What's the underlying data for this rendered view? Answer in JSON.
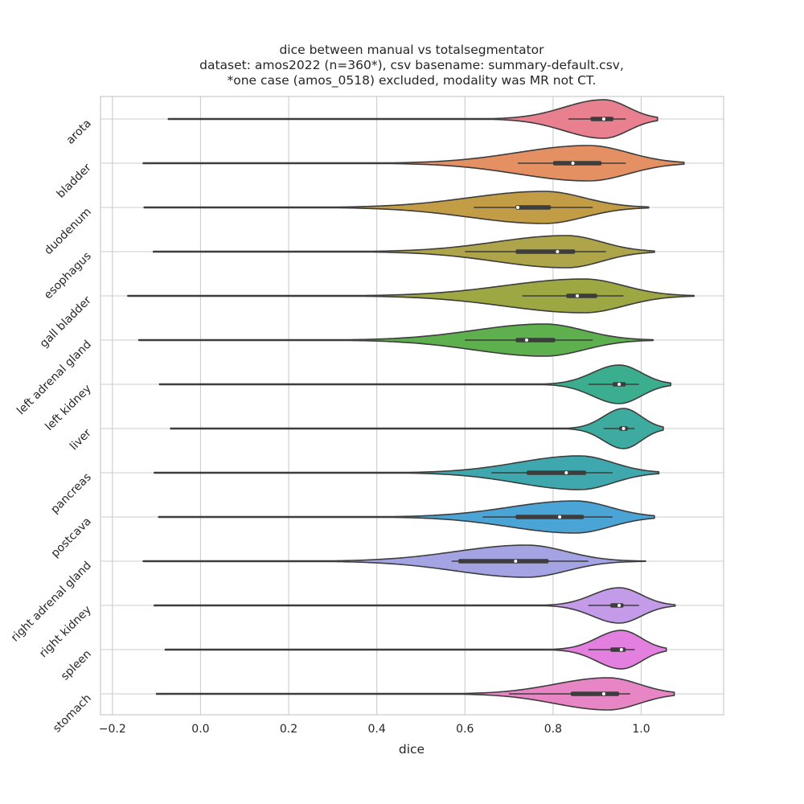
{
  "chart_data": {
    "type": "violin",
    "orientation": "horizontal",
    "title_lines": [
      "dice between manual vs totalsegmentator",
      "dataset: amos2022 (n=360*), csv basename: summary-default.csv,",
      "*one case (amos_0518) excluded, modality was MR not CT."
    ],
    "xlabel": "dice",
    "ylabel": "",
    "xlim": [
      -0.227,
      1.187
    ],
    "xticks": [
      -0.2,
      0.0,
      0.2,
      0.4,
      0.6,
      0.8,
      1.0
    ],
    "xtick_labels": [
      "−0.2",
      "0.0",
      "0.2",
      "0.4",
      "0.6",
      "0.8",
      "1.0"
    ],
    "grid": true,
    "categories": [
      {
        "label": "arota",
        "color": "#e8808f",
        "min": -0.073,
        "max": 1.037,
        "q1": 0.885,
        "median": 0.915,
        "q3": 0.937,
        "wlo": 0.835,
        "whi": 0.965,
        "mode": 0.915,
        "hw": 24,
        "ktl": 0.09,
        "kth": 0.055
      },
      {
        "label": "bladder",
        "color": "#e49062",
        "min": -0.13,
        "max": 1.097,
        "q1": 0.8,
        "median": 0.845,
        "q3": 0.91,
        "wlo": 0.72,
        "whi": 0.965,
        "mode": 0.88,
        "hw": 22,
        "ktl": 0.16,
        "kth": 0.09
      },
      {
        "label": "duodenum",
        "color": "#c29d45",
        "min": -0.128,
        "max": 1.017,
        "q1": 0.715,
        "median": 0.72,
        "q3": 0.795,
        "wlo": 0.62,
        "whi": 0.89,
        "mode": 0.78,
        "hw": 20,
        "ktl": 0.17,
        "kth": 0.09
      },
      {
        "label": "esophagus",
        "color": "#aea44a",
        "min": -0.107,
        "max": 1.03,
        "q1": 0.715,
        "median": 0.81,
        "q3": 0.85,
        "wlo": 0.6,
        "whi": 0.92,
        "mode": 0.83,
        "hw": 20,
        "ktl": 0.16,
        "kth": 0.08
      },
      {
        "label": "gall bladder",
        "color": "#9ea842",
        "min": -0.165,
        "max": 1.12,
        "q1": 0.83,
        "median": 0.855,
        "q3": 0.9,
        "wlo": 0.73,
        "whi": 0.96,
        "mode": 0.87,
        "hw": 21,
        "ktl": 0.18,
        "kth": 0.09
      },
      {
        "label": "left adrenal gland",
        "color": "#5db04d",
        "min": -0.14,
        "max": 1.027,
        "q1": 0.715,
        "median": 0.74,
        "q3": 0.805,
        "wlo": 0.6,
        "whi": 0.89,
        "mode": 0.78,
        "hw": 20,
        "ktl": 0.16,
        "kth": 0.09
      },
      {
        "label": "left kidney",
        "color": "#3cae90",
        "min": -0.093,
        "max": 1.067,
        "q1": 0.935,
        "median": 0.95,
        "q3": 0.965,
        "wlo": 0.88,
        "whi": 0.995,
        "mode": 0.95,
        "hw": 24,
        "ktl": 0.06,
        "kth": 0.05
      },
      {
        "label": "liver",
        "color": "#3dab9f",
        "min": -0.068,
        "max": 1.05,
        "q1": 0.95,
        "median": 0.96,
        "q3": 0.97,
        "wlo": 0.915,
        "whi": 0.985,
        "mode": 0.96,
        "hw": 25,
        "ktl": 0.045,
        "kth": 0.04
      },
      {
        "label": "pancreas",
        "color": "#3fa8af",
        "min": -0.105,
        "max": 1.04,
        "q1": 0.74,
        "median": 0.83,
        "q3": 0.875,
        "wlo": 0.66,
        "whi": 0.935,
        "mode": 0.86,
        "hw": 21,
        "ktl": 0.14,
        "kth": 0.075
      },
      {
        "label": "postcava",
        "color": "#4ba4d6",
        "min": -0.095,
        "max": 1.03,
        "q1": 0.715,
        "median": 0.815,
        "q3": 0.87,
        "wlo": 0.64,
        "whi": 0.935,
        "mode": 0.85,
        "hw": 20,
        "ktl": 0.15,
        "kth": 0.08
      },
      {
        "label": "right adrenal gland",
        "color": "#a4a3e4",
        "min": -0.13,
        "max": 1.01,
        "q1": 0.585,
        "median": 0.715,
        "q3": 0.79,
        "wlo": 0.57,
        "whi": 0.88,
        "mode": 0.74,
        "hw": 20,
        "ktl": 0.16,
        "kth": 0.09
      },
      {
        "label": "right kidney",
        "color": "#c39be8",
        "min": -0.105,
        "max": 1.077,
        "q1": 0.93,
        "median": 0.95,
        "q3": 0.96,
        "wlo": 0.88,
        "whi": 0.995,
        "mode": 0.95,
        "hw": 22,
        "ktl": 0.06,
        "kth": 0.05
      },
      {
        "label": "spleen",
        "color": "#e37fde",
        "min": -0.08,
        "max": 1.057,
        "q1": 0.93,
        "median": 0.955,
        "q3": 0.965,
        "wlo": 0.88,
        "whi": 0.985,
        "mode": 0.955,
        "hw": 24,
        "ktl": 0.055,
        "kth": 0.045
      },
      {
        "label": "stomach",
        "color": "#e885c5",
        "min": -0.1,
        "max": 1.075,
        "q1": 0.84,
        "median": 0.915,
        "q3": 0.95,
        "wlo": 0.7,
        "whi": 0.975,
        "mode": 0.925,
        "hw": 20,
        "ktl": 0.12,
        "kth": 0.07
      }
    ]
  }
}
